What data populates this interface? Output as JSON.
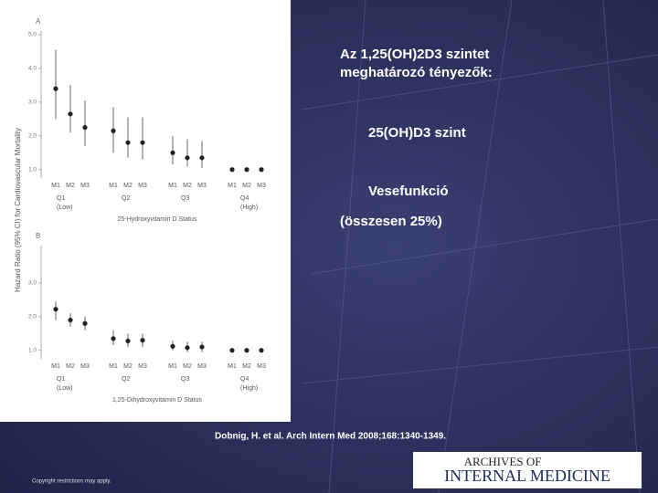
{
  "slide": {
    "heading": [
      "Az 1,25(OH)2D3 szintet",
      "meghatározó tényezők:"
    ],
    "items": [
      "25(OH)D3 szint",
      "Vesefunkció",
      "(összesen 25%)"
    ],
    "citation": "Dobnig, H. et al. Arch Intern Med 2008;168:1340-1349.",
    "copyright": "Copyright restrictions may apply.",
    "logo": [
      "ARCHIVES OF",
      "INTERNAL MEDICINE"
    ]
  },
  "figure": {
    "ylabel": "Hazard Ratio (95% CI) for Cardiovascular Mortality"
  },
  "chart_data": [
    {
      "type": "errorbar",
      "panel": "A",
      "xlabel": "25-Hydroxyvitamin D Status",
      "categories": [
        "M1",
        "M2",
        "M3",
        "M1",
        "M2",
        "M3",
        "M1",
        "M2",
        "M3",
        "M1",
        "M2",
        "M3"
      ],
      "groups": [
        {
          "name": "Q1",
          "note": "(Low)"
        },
        {
          "name": "Q2"
        },
        {
          "name": "Q3"
        },
        {
          "name": "Q4",
          "note": "(High)"
        }
      ],
      "series": [
        {
          "color": "#222222",
          "values": [
            3.4,
            2.65,
            2.25,
            2.15,
            1.8,
            1.8,
            1.5,
            1.35,
            1.35,
            1.0,
            1.0,
            1.0
          ],
          "lower": [
            2.5,
            2.1,
            1.7,
            1.5,
            1.35,
            1.3,
            1.15,
            1.1,
            1.05,
            null,
            null,
            null
          ],
          "upper": [
            4.55,
            3.5,
            3.05,
            2.85,
            2.55,
            2.55,
            2.0,
            1.9,
            1.85,
            null,
            null,
            null
          ]
        }
      ],
      "ylim": [
        0.75,
        5.0
      ],
      "yticks": [
        {
          "value": 1,
          "label": "1.0"
        },
        {
          "value": 2,
          "label": "2.0"
        },
        {
          "value": 3,
          "label": "3.0"
        },
        {
          "value": 4,
          "label": "4.0"
        },
        {
          "value": 5,
          "label": "5.0"
        }
      ]
    },
    {
      "type": "errorbar",
      "panel": "B",
      "xlabel": "1,25-Dihydroxyvitamin D Status",
      "categories": [
        "M1",
        "M2",
        "M3",
        "M1",
        "M2",
        "M3",
        "M1",
        "M2",
        "M3",
        "M1",
        "M2",
        "M3"
      ],
      "groups": [
        {
          "name": "Q1",
          "note": "(Low)"
        },
        {
          "name": "Q2"
        },
        {
          "name": "Q3"
        },
        {
          "name": "Q4",
          "note": "(High)"
        }
      ],
      "series": [
        {
          "color": "#222222",
          "values": [
            2.22,
            1.9,
            1.8,
            1.35,
            1.28,
            1.3,
            1.12,
            1.08,
            1.1,
            1.0,
            1.0,
            1.0
          ],
          "lower": [
            1.9,
            1.7,
            1.6,
            1.15,
            1.1,
            1.1,
            1.0,
            0.95,
            0.95,
            null,
            null,
            null
          ],
          "upper": [
            2.45,
            2.1,
            2.0,
            1.6,
            1.5,
            1.5,
            1.3,
            1.25,
            1.25,
            null,
            null,
            null
          ]
        }
      ],
      "ylim": [
        0.75,
        4.0
      ],
      "yticks": [
        {
          "value": 1,
          "label": "1.0"
        },
        {
          "value": 2,
          "label": "2.0"
        },
        {
          "value": 3,
          "label": "3.0"
        }
      ]
    }
  ]
}
